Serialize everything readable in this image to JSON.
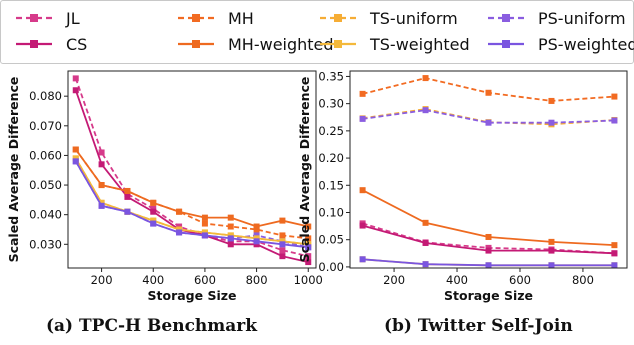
{
  "colors": {
    "JL": "#d63a8a",
    "CS": "#c41a75",
    "MH": "#f26b22",
    "MH-weighted": "#ee6a20",
    "TS-uniform": "#f6ad35",
    "TS-weighted": "#f4b93b",
    "PS-uniform": "#8a5de0",
    "PS-weighted": "#7a55e0"
  },
  "legend": [
    {
      "label": "JL",
      "dashed": true
    },
    {
      "label": "MH",
      "dashed": true
    },
    {
      "label": "TS-uniform",
      "dashed": true
    },
    {
      "label": "PS-uniform",
      "dashed": true
    },
    {
      "label": "CS",
      "dashed": false
    },
    {
      "label": "MH-weighted",
      "dashed": false
    },
    {
      "label": "TS-weighted",
      "dashed": false
    },
    {
      "label": "PS-weighted",
      "dashed": false
    }
  ],
  "chart_data": [
    {
      "type": "line",
      "caption": "(a) TPC-H Benchmark",
      "xlabel": "Storage Size",
      "ylabel": "Scaled Average Difference",
      "xlim": [
        70,
        1030
      ],
      "ylim": [
        0.022,
        0.0885
      ],
      "xticks": [
        200,
        400,
        600,
        800,
        1000
      ],
      "yticks": [
        0.03,
        0.04,
        0.05,
        0.06,
        0.07,
        0.08
      ],
      "ytick_labels": [
        "0.030",
        "0.040",
        "0.050",
        "0.060",
        "0.070",
        "0.080"
      ],
      "x": [
        100,
        200,
        300,
        400,
        500,
        600,
        700,
        800,
        900,
        1000
      ],
      "series": [
        {
          "name": "JL",
          "dashed": true,
          "values": [
            0.086,
            0.061,
            0.047,
            0.042,
            0.036,
            0.033,
            0.031,
            0.031,
            0.028,
            0.026
          ]
        },
        {
          "name": "CS",
          "dashed": false,
          "values": [
            0.082,
            0.057,
            0.046,
            0.041,
            0.035,
            0.033,
            0.03,
            0.03,
            0.026,
            0.024
          ]
        },
        {
          "name": "MH",
          "dashed": true,
          "values": [
            0.062,
            0.05,
            0.048,
            0.044,
            0.041,
            0.037,
            0.036,
            0.035,
            0.033,
            0.032
          ]
        },
        {
          "name": "MH-weighted",
          "dashed": false,
          "values": [
            0.062,
            0.05,
            0.048,
            0.044,
            0.041,
            0.039,
            0.039,
            0.036,
            0.038,
            0.036
          ]
        },
        {
          "name": "TS-uniform",
          "dashed": true,
          "values": [
            0.059,
            0.044,
            0.041,
            0.038,
            0.035,
            0.034,
            0.033,
            0.032,
            0.031,
            0.03
          ]
        },
        {
          "name": "TS-weighted",
          "dashed": false,
          "values": [
            0.059,
            0.044,
            0.041,
            0.038,
            0.035,
            0.034,
            0.033,
            0.032,
            0.031,
            0.03
          ]
        },
        {
          "name": "PS-uniform",
          "dashed": true,
          "values": [
            0.058,
            0.043,
            0.041,
            0.037,
            0.034,
            0.033,
            0.032,
            0.033,
            0.031,
            0.029
          ]
        },
        {
          "name": "PS-weighted",
          "dashed": false,
          "values": [
            0.058,
            0.043,
            0.041,
            0.037,
            0.034,
            0.033,
            0.032,
            0.031,
            0.03,
            0.029
          ]
        }
      ]
    },
    {
      "type": "line",
      "caption": "(b) Twitter Self-Join",
      "xlabel": "Storage Size",
      "ylabel": "Scaled Average Difference",
      "xlim": [
        60,
        940
      ],
      "ylim": [
        -0.002,
        0.36
      ],
      "xticks": [
        200,
        400,
        600,
        800
      ],
      "yticks": [
        0.0,
        0.05,
        0.1,
        0.15,
        0.2,
        0.25,
        0.3,
        0.35
      ],
      "ytick_labels": [
        "0.00",
        "0.05",
        "0.10",
        "0.15",
        "0.20",
        "0.25",
        "0.30",
        "0.35"
      ],
      "x": [
        100,
        300,
        500,
        700,
        900
      ],
      "series": [
        {
          "name": "JL",
          "dashed": true,
          "values": [
            0.08,
            0.045,
            0.035,
            0.032,
            0.025
          ]
        },
        {
          "name": "CS",
          "dashed": false,
          "values": [
            0.076,
            0.044,
            0.03,
            0.03,
            0.025
          ]
        },
        {
          "name": "MH",
          "dashed": true,
          "values": [
            0.318,
            0.347,
            0.32,
            0.305,
            0.313
          ]
        },
        {
          "name": "MH-weighted",
          "dashed": false,
          "values": [
            0.141,
            0.081,
            0.055,
            0.046,
            0.04
          ]
        },
        {
          "name": "TS-uniform",
          "dashed": true,
          "values": [
            0.273,
            0.29,
            0.266,
            0.262,
            0.27
          ]
        },
        {
          "name": "TS-weighted",
          "dashed": false,
          "values": [
            0.014,
            0.005,
            0.003,
            0.003,
            0.003
          ]
        },
        {
          "name": "PS-uniform",
          "dashed": true,
          "values": [
            0.272,
            0.288,
            0.265,
            0.265,
            0.269
          ]
        },
        {
          "name": "PS-weighted",
          "dashed": false,
          "values": [
            0.014,
            0.005,
            0.003,
            0.003,
            0.003
          ]
        }
      ]
    }
  ]
}
